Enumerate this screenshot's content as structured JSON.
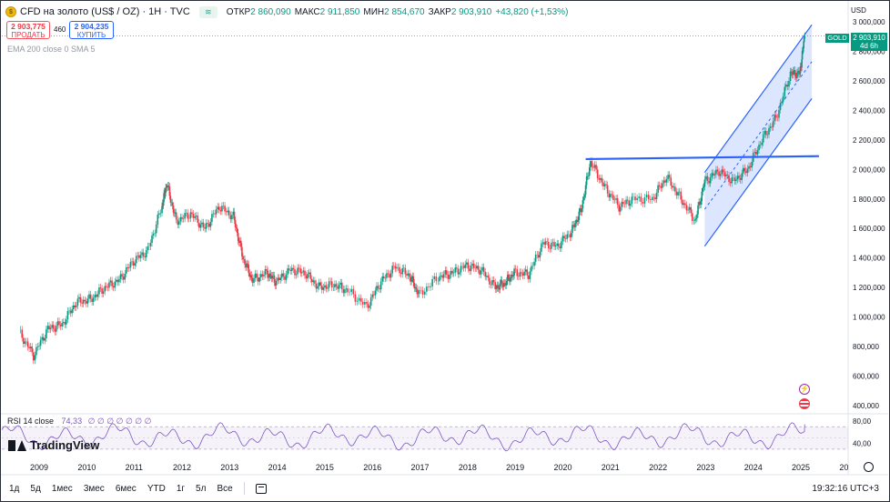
{
  "header": {
    "title": "CFD на золото (US$ / OZ) · 1H · TVC",
    "ohlc": [
      {
        "k": "ОТКР",
        "v": "2 860,090"
      },
      {
        "k": "МАКС",
        "v": "2 911,850"
      },
      {
        "k": "МИН",
        "v": "2 854,670"
      },
      {
        "k": "ЗАКР",
        "v": "2 903,910"
      },
      {
        "k": "",
        "v": "+43,820 (+1,53%)"
      }
    ]
  },
  "trade": {
    "sell_price": "2 903,775",
    "sell_label": "ПРОДАТЬ",
    "spread": "460",
    "buy_price": "2 904,235",
    "buy_label": "КУПИТЬ"
  },
  "indicators": {
    "ema": "EMA 200 close 0 SMA 5",
    "rsi": "RSI 14 close",
    "rsi_value": "74,33",
    "rsi_zeros": "∅ ∅ ∅ ∅ ∅ ∅ ∅"
  },
  "logo": "TradingView",
  "price_scale": {
    "currency": "USD",
    "symbol_tag": "GOLD",
    "last_price": "2 903,910",
    "countdown": "4d 6h",
    "ticks": [
      "3 000,000",
      "2 800,000",
      "2 600,000",
      "2 400,000",
      "2 200,000",
      "2 000,000",
      "1 800,000",
      "1 600,000",
      "1 400,000",
      "1 200,000",
      "1 000,000",
      "800,000",
      "600,000",
      "400,000"
    ],
    "rsi_ticks": [
      "80,00",
      "40,00"
    ]
  },
  "time_scale": [
    "2009",
    "2010",
    "2011",
    "2012",
    "2013",
    "2014",
    "2015",
    "2016",
    "2017",
    "2018",
    "2019",
    "2020",
    "2021",
    "2022",
    "2023",
    "2024",
    "2025",
    "20"
  ],
  "bottom_bar": {
    "timeframes": [
      "1д",
      "5д",
      "1мес",
      "3мес",
      "6мес",
      "YTD",
      "1г",
      "5л",
      "Все"
    ],
    "clock": "19:32:16 UTC+3"
  },
  "chart_data": {
    "type": "line",
    "title": "CFD на золото (US$ / OZ) · 1H · TVC",
    "xlabel": "",
    "ylabel": "",
    "ylim": [
      400,
      3000
    ],
    "x": [
      2008.6,
      2008.9,
      2009.2,
      2009.5,
      2009.8,
      2010.1,
      2010.4,
      2010.7,
      2011.0,
      2011.3,
      2011.6,
      2011.7,
      2011.9,
      2012.2,
      2012.5,
      2012.8,
      2013.1,
      2013.3,
      2013.5,
      2013.8,
      2014.0,
      2014.3,
      2014.6,
      2014.9,
      2015.2,
      2015.5,
      2015.9,
      2016.2,
      2016.5,
      2016.8,
      2017.0,
      2017.4,
      2017.7,
      2018.0,
      2018.3,
      2018.6,
      2018.8,
      2019.0,
      2019.3,
      2019.6,
      2019.9,
      2020.2,
      2020.4,
      2020.6,
      2020.9,
      2021.2,
      2021.5,
      2021.9,
      2022.2,
      2022.5,
      2022.8,
      2023.0,
      2023.3,
      2023.6,
      2023.9,
      2024.2,
      2024.5,
      2024.8,
      2025.0,
      2025.1
    ],
    "series": [
      {
        "values": [
          900,
          740,
          920,
          950,
          1100,
          1120,
          1200,
          1250,
          1380,
          1450,
          1750,
          1900,
          1650,
          1700,
          1600,
          1750,
          1680,
          1400,
          1250,
          1300,
          1240,
          1320,
          1300,
          1200,
          1220,
          1180,
          1070,
          1240,
          1340,
          1280,
          1150,
          1270,
          1300,
          1350,
          1320,
          1200,
          1230,
          1300,
          1290,
          1500,
          1480,
          1580,
          1720,
          2050,
          1880,
          1750,
          1800,
          1800,
          1950,
          1800,
          1650,
          1920,
          1990,
          1920,
          2000,
          2200,
          2350,
          2650,
          2650,
          2904
        ]
      }
    ],
    "rsi": {
      "ylim": [
        20,
        90
      ],
      "last": 74.33
    }
  }
}
